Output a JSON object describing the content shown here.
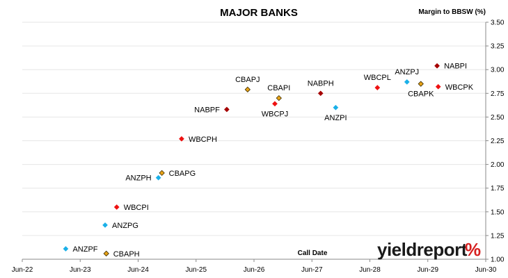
{
  "chart_data": {
    "type": "scatter",
    "title": "MAJOR BANKS",
    "ylabel": "Margin to BBSW (%)",
    "xlabel": "Call Date",
    "ylim": [
      1.0,
      3.5
    ],
    "yticks": [
      "1.00",
      "1.25",
      "1.50",
      "1.75",
      "2.00",
      "2.25",
      "2.50",
      "2.75",
      "3.00",
      "3.25",
      "3.50"
    ],
    "xlim": [
      "Jun-22",
      "Jun-30"
    ],
    "xticks": [
      "Jun-22",
      "Jun-23",
      "Jun-24",
      "Jun-25",
      "Jun-26",
      "Jun-27",
      "Jun-28",
      "Jun-29",
      "Jun-30"
    ],
    "grid": "horizontal",
    "y_axis_side": "right",
    "colors": {
      "ANZ": "#1ab0e8",
      "CBA": "#e8a317",
      "NAB": "#a50000",
      "WBC": "#ee1111"
    },
    "points": [
      {
        "label": "ANZPF",
        "issuer": "ANZ",
        "x": 2023.25,
        "y": 1.11,
        "label_side": "right"
      },
      {
        "label": "CBAPH",
        "issuer": "CBA",
        "x": 2023.95,
        "y": 1.06,
        "label_side": "right"
      },
      {
        "label": "ANZPG",
        "issuer": "ANZ",
        "x": 2023.93,
        "y": 1.36,
        "label_side": "right"
      },
      {
        "label": "WBCPI",
        "issuer": "WBC",
        "x": 2024.13,
        "y": 1.55,
        "label_side": "right"
      },
      {
        "label": "ANZPH",
        "issuer": "ANZ",
        "x": 2024.85,
        "y": 1.86,
        "label_side": "left"
      },
      {
        "label": "CBAPG",
        "issuer": "CBA",
        "x": 2024.91,
        "y": 1.91,
        "label_side": "right"
      },
      {
        "label": "WBCPH",
        "issuer": "WBC",
        "x": 2025.25,
        "y": 2.27,
        "label_side": "right"
      },
      {
        "label": "NABPF",
        "issuer": "NAB",
        "x": 2026.03,
        "y": 2.58,
        "label_side": "left"
      },
      {
        "label": "CBAPJ",
        "issuer": "CBA",
        "x": 2026.39,
        "y": 2.79,
        "label_side": "above"
      },
      {
        "label": "WBCPJ",
        "issuer": "WBC",
        "x": 2026.86,
        "y": 2.64,
        "label_side": "below"
      },
      {
        "label": "CBAPI",
        "issuer": "CBA",
        "x": 2026.93,
        "y": 2.7,
        "label_side": "above"
      },
      {
        "label": "NABPH",
        "issuer": "NAB",
        "x": 2027.65,
        "y": 2.75,
        "label_side": "above"
      },
      {
        "label": "ANZPI",
        "issuer": "ANZ",
        "x": 2027.91,
        "y": 2.6,
        "label_side": "below"
      },
      {
        "label": "WBCPL",
        "issuer": "WBC",
        "x": 2028.63,
        "y": 2.81,
        "label_side": "above"
      },
      {
        "label": "ANZPJ",
        "issuer": "ANZ",
        "x": 2029.14,
        "y": 2.87,
        "label_side": "above"
      },
      {
        "label": "CBAPK",
        "issuer": "CBA",
        "x": 2029.38,
        "y": 2.85,
        "label_side": "below"
      },
      {
        "label": "NABPI",
        "issuer": "NAB",
        "x": 2029.66,
        "y": 3.04,
        "label_side": "right"
      },
      {
        "label": "WBCPK",
        "issuer": "WBC",
        "x": 2029.68,
        "y": 2.82,
        "label_side": "right"
      }
    ]
  },
  "logo": {
    "text": "yieldreport",
    "mark": "%"
  }
}
